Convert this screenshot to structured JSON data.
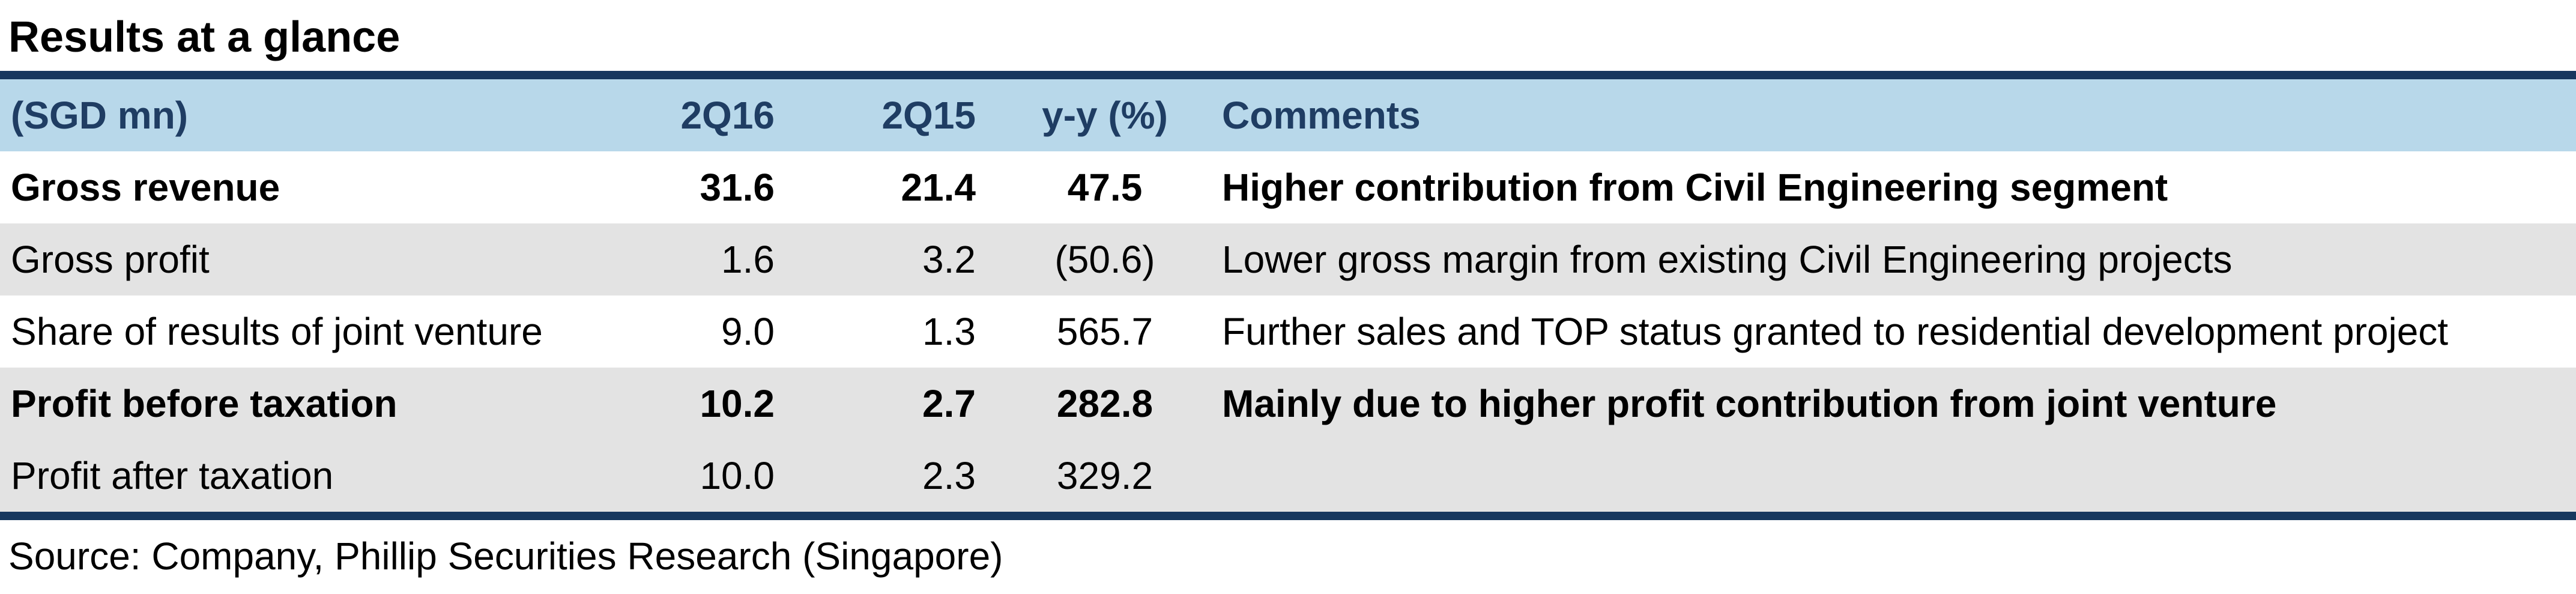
{
  "title": "Results at a glance",
  "table": {
    "headers": {
      "label": "(SGD mn)",
      "col1": "2Q16",
      "col2": "2Q15",
      "col3": "y-y (%)",
      "comments": "Comments"
    },
    "rows": [
      {
        "label": "Gross revenue",
        "v2q16": "31.6",
        "v2q15": "21.4",
        "yy": "47.5",
        "comment": "Higher contribution from Civil Engineering segment",
        "bold": true
      },
      {
        "label": "Gross profit",
        "v2q16": "1.6",
        "v2q15": "3.2",
        "yy": "(50.6)",
        "comment": "Lower gross margin from existing Civil Engineering projects",
        "bold": false
      },
      {
        "label": "Share of results of joint venture",
        "v2q16": "9.0",
        "v2q15": "1.3",
        "yy": "565.7",
        "comment": "Further sales and TOP status granted to residential development project",
        "bold": false
      },
      {
        "label": "Profit before taxation",
        "v2q16": "10.2",
        "v2q15": "2.7",
        "yy": "282.8",
        "comment": "Mainly due to higher profit contribution from joint venture",
        "bold": true
      },
      {
        "label": "Profit after taxation",
        "v2q16": "10.0",
        "v2q15": "2.3",
        "yy": "329.2",
        "comment": "",
        "bold": false
      }
    ]
  },
  "source": "Source: Company, Phillip Securities Research (Singapore)",
  "colors": {
    "rule": "#17375e",
    "header_bg": "#b8d8ea",
    "header_text": "#1f3d63",
    "row_alt_bg": "#e3e3e3"
  }
}
